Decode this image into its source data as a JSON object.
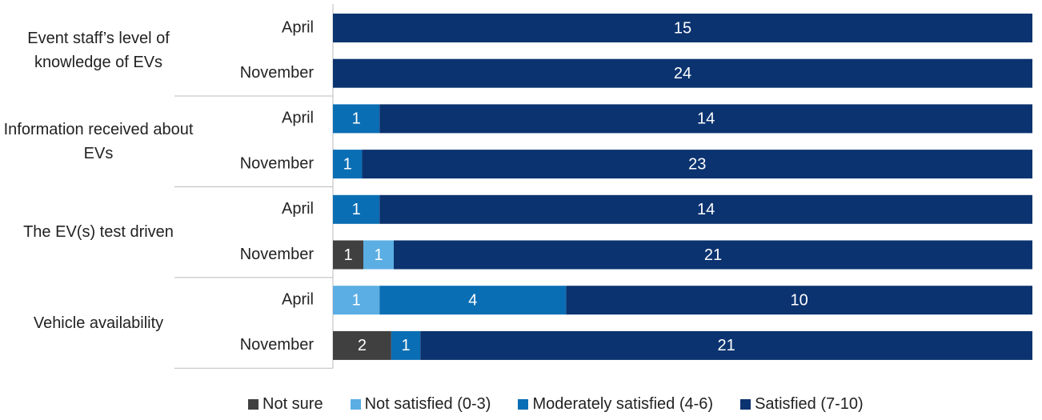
{
  "chart_data": {
    "type": "stacked-bar-100",
    "groups": [
      "Event staff’s level of knowledge of EVs",
      "Information received about EVs",
      "The EV(s) test driven",
      "Vehicle availability"
    ],
    "categories": [
      "April",
      "November",
      "April",
      "November",
      "April",
      "November",
      "April",
      "November"
    ],
    "series": [
      {
        "name": "Not sure",
        "color": "#404040",
        "values": [
          null,
          null,
          null,
          null,
          null,
          1,
          null,
          2
        ]
      },
      {
        "name": "Not satisfied (0-3)",
        "color": "#5aaee3",
        "values": [
          null,
          null,
          null,
          null,
          null,
          1,
          1,
          null
        ]
      },
      {
        "name": "Moderately satisfied (4-6)",
        "color": "#0a6eb4",
        "values": [
          null,
          null,
          1,
          1,
          1,
          null,
          4,
          1
        ]
      },
      {
        "name": "Satisfied (7-10)",
        "color": "#0b3370",
        "values": [
          15,
          24,
          14,
          23,
          14,
          21,
          10,
          21
        ]
      }
    ],
    "legend": "bottom"
  }
}
